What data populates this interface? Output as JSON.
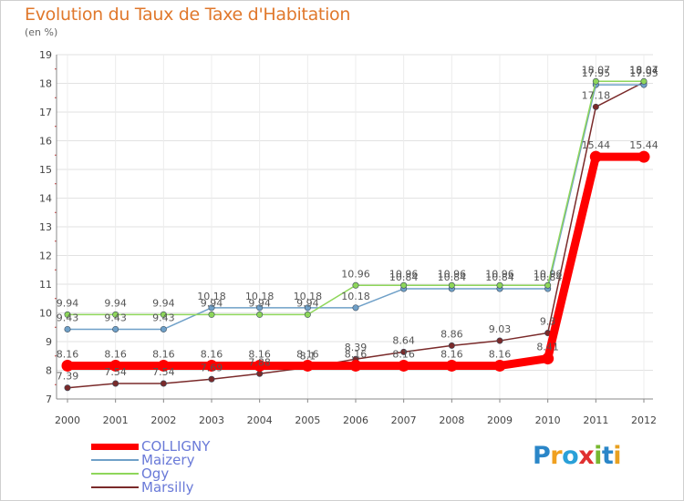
{
  "title": "Evolution du Taux de Taxe d'Habitation",
  "subtitle": "(en %)",
  "chart_data": {
    "type": "line",
    "title": "Evolution du Taux de Taxe d'Habitation",
    "ylabel": "(en %)",
    "xlabel": "",
    "ylim": [
      7,
      19
    ],
    "yticks": [
      7,
      8,
      9,
      10,
      11,
      12,
      13,
      14,
      15,
      16,
      17,
      18,
      19
    ],
    "x": [
      2000,
      2001,
      2002,
      2003,
      2004,
      2005,
      2006,
      2007,
      2008,
      2009,
      2010,
      2011,
      2012
    ],
    "legend_position": "bottom-left",
    "series": [
      {
        "name": "COLLIGNY",
        "color": "#ff0000",
        "values": [
          8.16,
          8.16,
          8.16,
          8.16,
          8.16,
          8.16,
          8.16,
          8.16,
          8.16,
          8.16,
          8.41,
          15.44,
          15.44
        ],
        "labels": [
          "8.16",
          "8.16",
          "8.16",
          "8.16",
          "8.16",
          "8.16",
          "8.16",
          "8.16",
          "8.16",
          "8.16",
          "8.41",
          "15.44",
          "15.44"
        ]
      },
      {
        "name": "Maizery",
        "color": "#6fa0c8",
        "values": [
          9.43,
          9.43,
          9.43,
          10.18,
          10.18,
          10.18,
          10.18,
          10.84,
          10.84,
          10.84,
          10.84,
          17.95,
          17.95
        ],
        "labels": [
          "9.43",
          "9.43",
          "9.43",
          "10.18",
          "10.18",
          "10.18",
          "10.18",
          "10.84",
          "10.84",
          "10.84",
          "10.84",
          "17.95",
          "17.95"
        ]
      },
      {
        "name": "Ogy",
        "color": "#8ed65a",
        "values": [
          9.94,
          9.94,
          9.94,
          9.94,
          9.94,
          9.94,
          10.96,
          10.96,
          10.96,
          10.96,
          10.96,
          18.07,
          18.07
        ],
        "labels": [
          "9.94",
          "9.94",
          "9.94",
          "9.94",
          "9.94",
          "9.94",
          "10.96",
          "10.96",
          "10.96",
          "10.96",
          "10.96",
          "18.07",
          "18.07"
        ]
      },
      {
        "name": "Marsilly",
        "color": "#7a2a2a",
        "values": [
          7.39,
          7.54,
          7.54,
          7.69,
          7.88,
          8.1,
          8.39,
          8.64,
          8.86,
          9.03,
          9.3,
          17.18,
          18.04
        ],
        "labels": [
          "7.39",
          "7.54",
          "7.54",
          "7.69",
          "7.88",
          "8.1",
          "8.39",
          "8.64",
          "8.86",
          "9.03",
          "9.3",
          "17.18",
          "18.04"
        ]
      }
    ]
  },
  "logo": {
    "text": "Proxiti",
    "letters": [
      "P",
      "r",
      "o",
      "x",
      "i",
      "t",
      "i"
    ],
    "colors": [
      "#2a86c8",
      "#f0a020",
      "#2aa0d8",
      "#e03030",
      "#78b830",
      "#2a86c8",
      "#e8a020"
    ]
  }
}
